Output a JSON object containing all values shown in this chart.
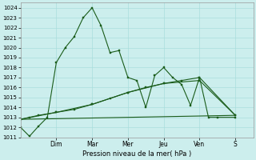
{
  "bg_color": "#cceeed",
  "grid_color": "#aadddc",
  "line_color": "#1a5c1a",
  "xlabel": "Pression niveau de la mer( hPa )",
  "ylim": [
    1011,
    1024.5
  ],
  "xlim": [
    0,
    13
  ],
  "yticks": [
    1011,
    1012,
    1013,
    1014,
    1015,
    1016,
    1017,
    1018,
    1019,
    1020,
    1021,
    1022,
    1023,
    1024
  ],
  "day_labels": [
    "Dim",
    "Mar",
    "Mer",
    "Jeu",
    "Ven",
    "S"
  ],
  "day_positions": [
    2.0,
    4.0,
    6.0,
    8.0,
    10.0,
    12.0
  ],
  "series1": [
    [
      0.0,
      1012.0
    ],
    [
      0.5,
      1011.1
    ],
    [
      1.0,
      1012.1
    ],
    [
      1.5,
      1013.0
    ],
    [
      2.0,
      1018.5
    ],
    [
      2.5,
      1020.0
    ],
    [
      3.0,
      1021.1
    ],
    [
      3.5,
      1023.0
    ],
    [
      4.0,
      1024.0
    ],
    [
      4.5,
      1022.2
    ],
    [
      5.0,
      1019.5
    ],
    [
      5.5,
      1019.7
    ],
    [
      6.0,
      1017.0
    ],
    [
      6.5,
      1016.7
    ],
    [
      7.0,
      1014.0
    ],
    [
      7.5,
      1017.2
    ],
    [
      8.0,
      1018.0
    ],
    [
      8.5,
      1017.0
    ],
    [
      9.0,
      1016.3
    ],
    [
      9.5,
      1014.2
    ],
    [
      10.0,
      1017.0
    ],
    [
      10.5,
      1013.0
    ],
    [
      11.0,
      1013.0
    ],
    [
      12.0,
      1013.0
    ]
  ],
  "series2": [
    [
      0.0,
      1012.8
    ],
    [
      0.5,
      1013.0
    ],
    [
      1.0,
      1013.2
    ],
    [
      2.0,
      1013.5
    ],
    [
      3.0,
      1013.8
    ],
    [
      4.0,
      1014.3
    ],
    [
      5.0,
      1014.9
    ],
    [
      6.0,
      1015.5
    ],
    [
      7.0,
      1016.0
    ],
    [
      8.0,
      1016.4
    ],
    [
      9.0,
      1016.7
    ],
    [
      10.0,
      1017.0
    ],
    [
      12.0,
      1013.2
    ]
  ],
  "series3": [
    [
      0.0,
      1012.8
    ],
    [
      2.0,
      1013.5
    ],
    [
      4.0,
      1014.3
    ],
    [
      6.0,
      1015.5
    ],
    [
      8.0,
      1016.4
    ],
    [
      10.0,
      1016.7
    ],
    [
      12.0,
      1013.2
    ]
  ],
  "series4": [
    [
      0.0,
      1012.8
    ],
    [
      12.0,
      1013.2
    ]
  ]
}
